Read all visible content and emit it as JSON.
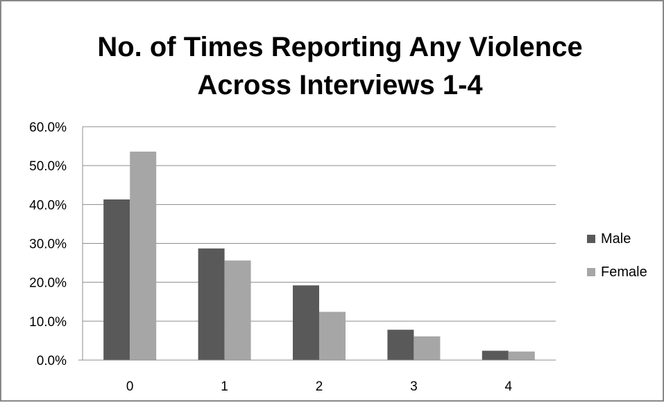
{
  "chart_data": {
    "type": "bar",
    "title": "No. of Times Reporting Any Violence Across Interviews 1-4",
    "title_lines": [
      "No. of Times Reporting Any Violence",
      "Across Interviews 1-4"
    ],
    "xlabel": "",
    "ylabel": "",
    "categories": [
      "0",
      "1",
      "2",
      "3",
      "4"
    ],
    "series": [
      {
        "name": "Male",
        "color": "#595959",
        "values": [
          41.3,
          28.7,
          19.2,
          7.8,
          2.4
        ]
      },
      {
        "name": "Female",
        "color": "#a6a6a6",
        "values": [
          53.6,
          25.6,
          12.4,
          6.1,
          2.2
        ]
      }
    ],
    "ylim": [
      0,
      60
    ],
    "yticks": [
      0,
      10,
      20,
      30,
      40,
      50,
      60
    ],
    "ytick_labels": [
      "0.0%",
      "10.0%",
      "20.0%",
      "30.0%",
      "40.0%",
      "50.0%",
      "60.0%"
    ],
    "grid": true,
    "legend_position": "right"
  }
}
